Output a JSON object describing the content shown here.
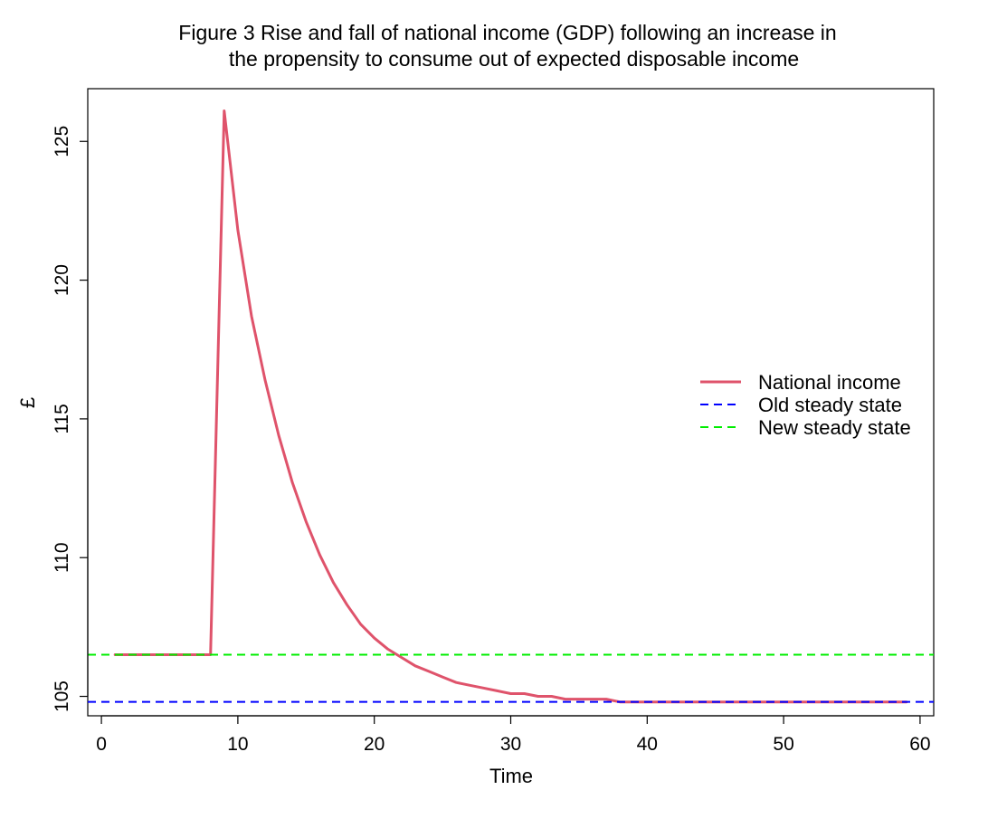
{
  "chart_data": {
    "type": "line",
    "title_lines": [
      "Figure 3  Rise and fall of national income (GDP) following an increase in",
      "the propensity to consume out of expected disposable income"
    ],
    "xlabel": "Time",
    "ylabel": "£",
    "xlim": [
      -1,
      61
    ],
    "ylim": [
      104.3,
      126.9
    ],
    "x_ticks": [
      0,
      10,
      20,
      30,
      40,
      50,
      60
    ],
    "y_ticks": [
      105,
      110,
      115,
      120,
      125
    ],
    "grid": false,
    "legend_position": "right",
    "series": [
      {
        "name": "National income",
        "color": "#DF536B",
        "style": "solid",
        "x": [
          1,
          2,
          3,
          4,
          5,
          6,
          7,
          8,
          9,
          10,
          11,
          12,
          13,
          14,
          15,
          16,
          17,
          18,
          19,
          20,
          21,
          22,
          23,
          24,
          25,
          26,
          27,
          28,
          29,
          30,
          31,
          32,
          33,
          34,
          35,
          36,
          37,
          38,
          39,
          40,
          41,
          42,
          43,
          44,
          45,
          46,
          47,
          48,
          49,
          50,
          51,
          52,
          53,
          54,
          55,
          56,
          57,
          58,
          59
        ],
        "values": [
          106.5,
          106.5,
          106.5,
          106.5,
          106.5,
          106.5,
          106.5,
          106.5,
          126.1,
          121.8,
          118.7,
          116.4,
          114.4,
          112.7,
          111.3,
          110.1,
          109.1,
          108.3,
          107.6,
          107.1,
          106.7,
          106.4,
          106.1,
          105.9,
          105.7,
          105.5,
          105.4,
          105.3,
          105.2,
          105.1,
          105.1,
          105.0,
          105.0,
          104.9,
          104.9,
          104.9,
          104.9,
          104.8,
          104.8,
          104.8,
          104.8,
          104.8,
          104.8,
          104.8,
          104.8,
          104.8,
          104.8,
          104.8,
          104.8,
          104.8,
          104.8,
          104.8,
          104.8,
          104.8,
          104.8,
          104.8,
          104.8,
          104.8,
          104.8
        ]
      },
      {
        "name": "Old steady state",
        "color": "#0000FF",
        "style": "dashed",
        "hline": 104.8
      },
      {
        "name": "New steady state",
        "color": "#00EE00",
        "style": "dashed",
        "hline": 106.5
      }
    ]
  }
}
